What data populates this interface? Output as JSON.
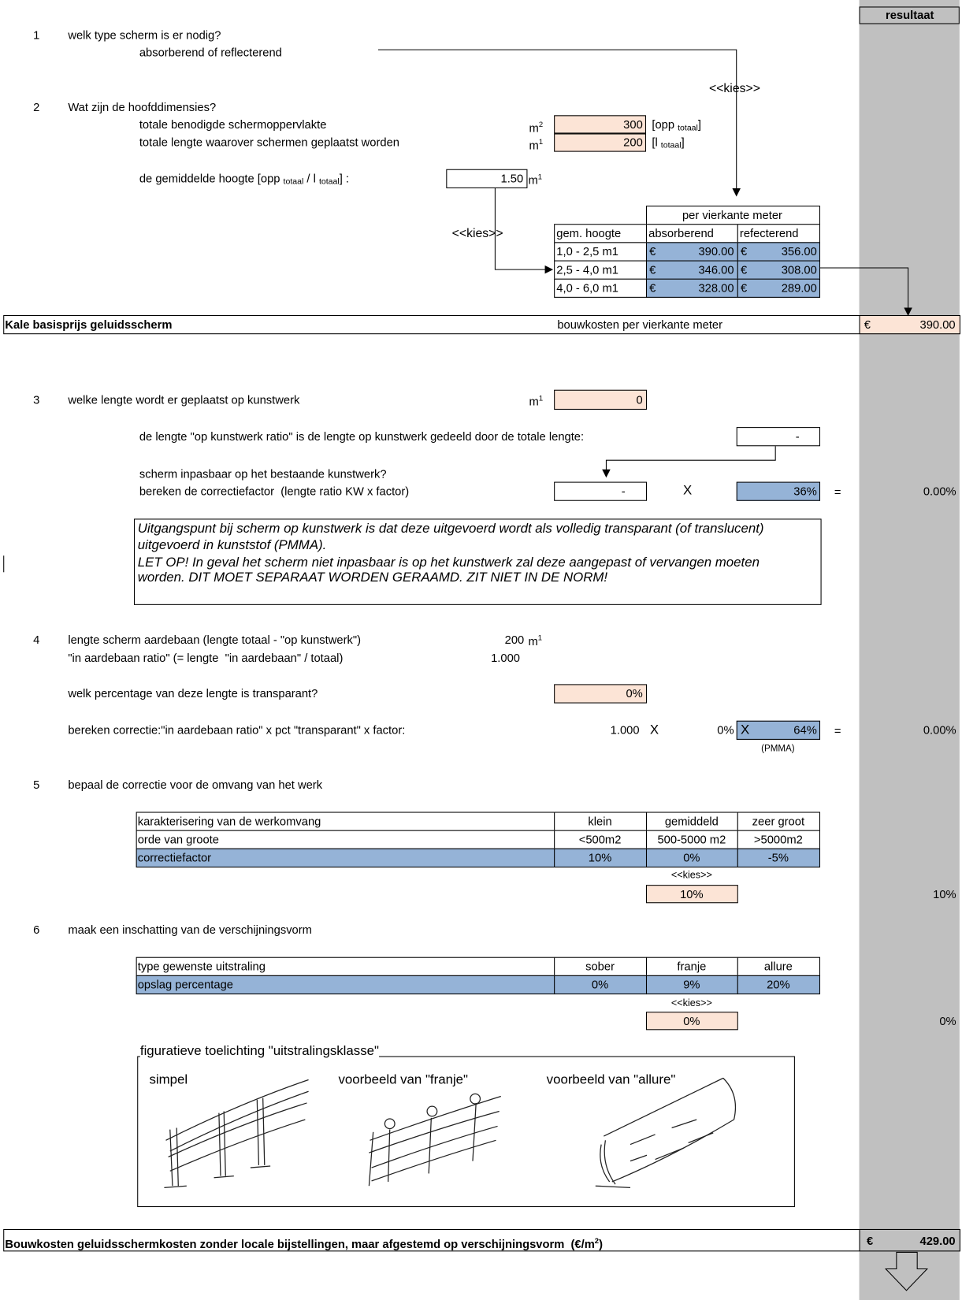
{
  "header": {
    "result_title": "resultaat"
  },
  "q1": {
    "number": "1",
    "question": "welk type scherm is er nodig?",
    "sub": "absorberend of reflecterend",
    "choose": "<<kies>>"
  },
  "q2": {
    "number": "2",
    "question": "Wat zijn de hoofddimensies?",
    "area": {
      "label": "totale benodigde schermoppervlakte",
      "unit": "m",
      "unit_sup": "2",
      "value": "300",
      "ref": "[opp ",
      "ref_sub": "totaal",
      "ref_end": "]"
    },
    "length": {
      "label": "totale lengte waarover schermen geplaatst worden",
      "unit": "m",
      "unit_sup": "1",
      "value": "200",
      "ref": "[l ",
      "ref_sub": "totaal",
      "ref_end": "]"
    },
    "height": {
      "label_a": "de gemiddelde hoogte [opp ",
      "sub_a": "totaal",
      "label_b": " / l ",
      "sub_b": "totaal",
      "label_c": "] :",
      "value": "1.50",
      "unit": "m",
      "unit_sup": "1"
    },
    "choose": "<<kies>>",
    "price_table": {
      "group_header": "per vierkante meter",
      "headers": [
        "gem. hoogte",
        "absorberend",
        "refecterend"
      ],
      "rows": [
        [
          "1,0 - 2,5 m1",
          "€",
          "390.00",
          "€",
          "356.00"
        ],
        [
          "2,5 - 4,0 m1",
          "€",
          "346.00",
          "€",
          "308.00"
        ],
        [
          "4,0 - 6,0 m1",
          "€",
          "328.00",
          "€",
          "289.00"
        ]
      ]
    }
  },
  "base_price": {
    "label": "Kale basisprijs geluidsscherm",
    "description": "bouwkosten per vierkante meter",
    "currency": "€",
    "value": "390.00"
  },
  "q3": {
    "number": "3",
    "question": "welke lengte wordt er geplaatst op kunstwerk",
    "unit": "m",
    "unit_sup": "1",
    "value": "0",
    "ratio_text": "de lengte \"op kunstwerk ratio\" is de lengte op kunstwerk gedeeld door de totale lengte:",
    "ratio_value": "-",
    "fit_question": "scherm inpasbaar op het bestaande kunstwerk?",
    "calc_label": "bereken de correctiefactor  (lengte ratio KW x factor)",
    "calc_ratio": "-",
    "times": "X",
    "factor": "36%",
    "equals": "=",
    "result": "0.00%",
    "note": [
      "Uitgangspunt bij scherm op kunstwerk is dat deze uitgevoerd wordt als volledig transparant (of translucent)",
      "uitgevoerd in kunststof (PMMA).",
      "LET OP! In geval het scherm niet inpasbaar is op het kunstwerk zal deze aangepast of vervangen moeten",
      "worden. DIT MOET SEPARAAT WORDEN GERAAMD. ZIT NIET IN DE NORM!"
    ]
  },
  "q4": {
    "number": "4",
    "length_label": "lengte scherm aardebaan (lengte totaal - \"op kunstwerk\")",
    "length_value": "200",
    "unit": "m",
    "unit_sup": "1",
    "ratio_label": "\"in aardebaan ratio\" (= lengte  \"in aardebaan\" / totaal)",
    "ratio_value": "1.000",
    "transparent_question": "welk percentage van deze lengte is transparant?",
    "transparent_value": "0%",
    "calc_label": "bereken correctie:\"in aardebaan ratio\" x pct \"transparant\" x factor:",
    "calc_ratio": "1.000",
    "times": "X",
    "calc_pct": "0%",
    "times_2": "X",
    "factor": "64%",
    "factor_note": "(PMMA)",
    "equals": "=",
    "result": "0.00%"
  },
  "q5": {
    "number": "5",
    "question": "bepaal de correctie voor de omvang van het werk",
    "table": [
      [
        "karakterisering van de werkomvang",
        "klein",
        "gemiddeld",
        "zeer groot"
      ],
      [
        "orde van groote",
        "<500m2",
        "500-5000 m2",
        ">5000m2"
      ],
      [
        "correctiefactor",
        "10%",
        "0%",
        "-5%"
      ]
    ],
    "choose": "<<kies>>",
    "choice": "10%",
    "result": "10%"
  },
  "q6": {
    "number": "6",
    "question": "maak een inschatting van de verschijningsvorm",
    "table": [
      [
        "type gewenste uitstraling",
        "sober",
        "franje",
        "allure"
      ],
      [
        "opslag percentage",
        "0%",
        "9%",
        "20%"
      ]
    ],
    "choose": "<<kies>>",
    "choice": "0%",
    "result": "0%",
    "figure": {
      "title": "figuratieve toelichting \"uitstralingsklasse\"",
      "captions": [
        "simpel",
        "voorbeeld van \"franje\"",
        "voorbeeld van \"allure\""
      ]
    }
  },
  "total": {
    "label": "Bouwkosten geluidsschermkosten zonder locale bijstellingen, maar afgestemd op verschijningsvorm  (€/m",
    "label_sup": "2",
    "label_end": ")",
    "currency": "€",
    "value": "429.00"
  }
}
